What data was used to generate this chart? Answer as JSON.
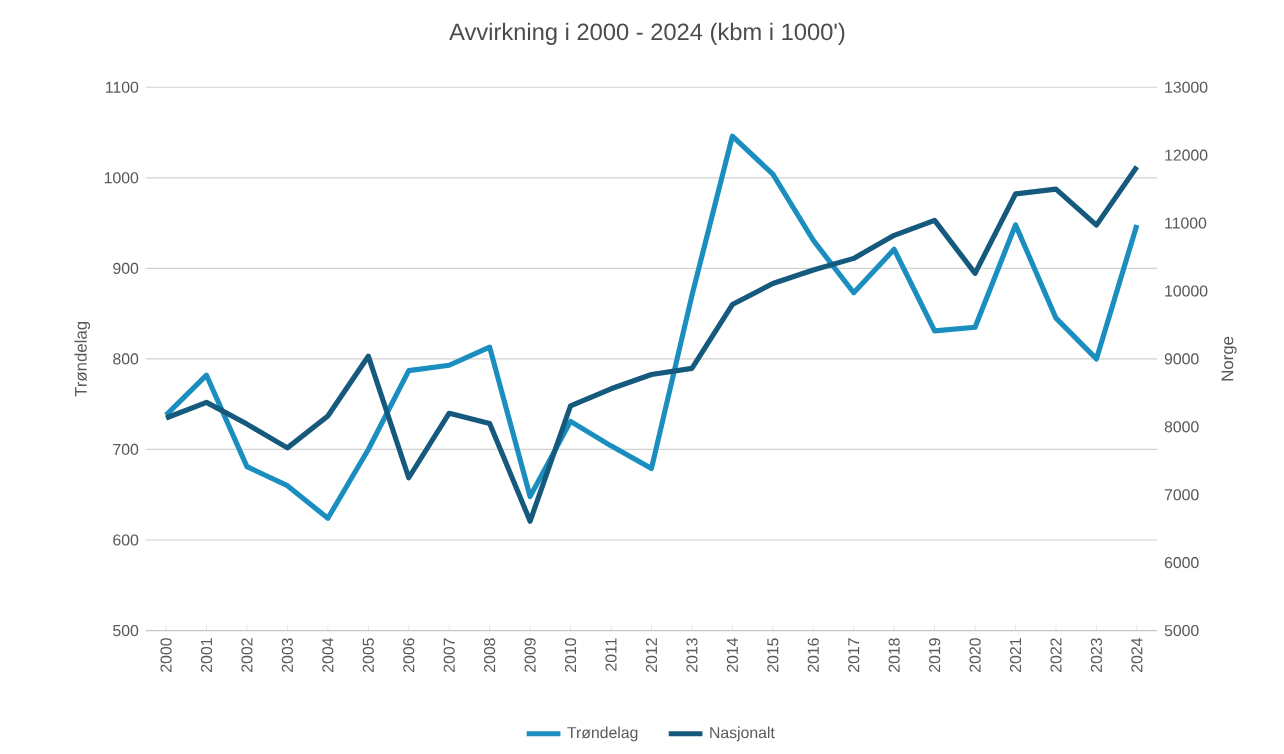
{
  "chart_data": {
    "type": "line",
    "title": "Avvirkning i 2000 - 2024 (kbm i 1000')",
    "categories": [
      "2000",
      "2001",
      "2002",
      "2003",
      "2004",
      "2005",
      "2006",
      "2007",
      "2008",
      "2009",
      "2010",
      "2011",
      "2012",
      "2013",
      "2014",
      "2015",
      "2016",
      "2017",
      "2018",
      "2019",
      "2020",
      "2021",
      "2022",
      "2023",
      "2024"
    ],
    "series": [
      {
        "name": "Trøndelag",
        "color": "#1b8ec0",
        "values": [
          738,
          782,
          681,
          660,
          624,
          700,
          787,
          793,
          813,
          648,
          731,
          704,
          679,
          870,
          1046,
          1004,
          931,
          873,
          921,
          831,
          835,
          948,
          845,
          800,
          948
        ]
      },
      {
        "name": "Nasjonalt",
        "color": "#155a7c",
        "axis": "y2",
        "values": [
          8130,
          8360,
          8040,
          7690,
          8160,
          9040,
          7250,
          8200,
          8050,
          6610,
          8310,
          8560,
          8770,
          8860,
          9800,
          10110,
          10310,
          10480,
          10820,
          11040,
          10260,
          11430,
          11500,
          10970,
          11830
        ]
      }
    ],
    "ylabel": "Trøndelag",
    "y2label": "Norge",
    "ylim": [
      500,
      1100
    ],
    "yticks": [
      500,
      600,
      700,
      800,
      900,
      1000,
      1100
    ],
    "y2lim": [
      5000,
      13000
    ],
    "y2ticks": [
      5000,
      6000,
      7000,
      8000,
      9000,
      10000,
      11000,
      12000,
      13000
    ],
    "grid": "y",
    "legend": "bottom",
    "marker": "none",
    "line_style": "solid"
  }
}
